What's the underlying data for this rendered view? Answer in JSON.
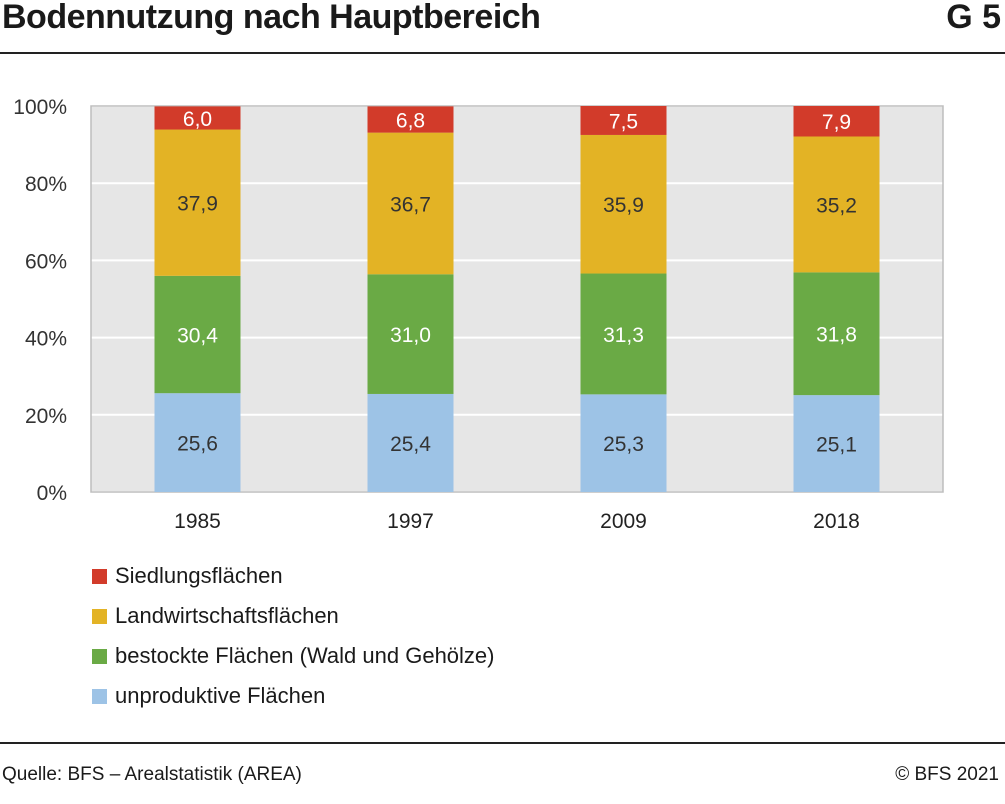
{
  "header": {
    "title": "Bodennutzung nach Hauptbereich",
    "figure_number": "G 5"
  },
  "footer": {
    "source": "Quelle: BFS – Arealstatistik (AREA)",
    "copyright": "© BFS 2021"
  },
  "chart_data": {
    "type": "bar",
    "stacked": true,
    "categories": [
      "1985",
      "1997",
      "2009",
      "2018"
    ],
    "series": [
      {
        "name": "unproduktive Flächen",
        "values": [
          25.6,
          25.4,
          25.3,
          25.1
        ],
        "labels": [
          "25,6",
          "25,4",
          "25,3",
          "25,1"
        ],
        "color": "#9dc3e6",
        "label_color": "#333333"
      },
      {
        "name": "bestockte Flächen (Wald und Gehölze)",
        "values": [
          30.4,
          31.0,
          31.3,
          31.8
        ],
        "labels": [
          "30,4",
          "31,0",
          "31,3",
          "31,8"
        ],
        "color": "#6aaa45",
        "label_color": "#ffffff"
      },
      {
        "name": "Landwirtschaftsflächen",
        "values": [
          37.9,
          36.7,
          35.9,
          35.2
        ],
        "labels": [
          "37,9",
          "36,7",
          "35,9",
          "35,2"
        ],
        "color": "#e3b325",
        "label_color": "#333333"
      },
      {
        "name": "Siedlungsflächen",
        "values": [
          6.0,
          6.8,
          7.5,
          7.9
        ],
        "labels": [
          "6,0",
          "6,8",
          "7,5",
          "7,9"
        ],
        "color": "#d23b2a",
        "label_color": "#ffffff"
      }
    ],
    "legend_order": [
      3,
      2,
      1,
      0
    ],
    "y_ticks": [
      "0%",
      "20%",
      "40%",
      "60%",
      "80%",
      "100%"
    ],
    "ylim": [
      0,
      100
    ],
    "grid": true,
    "plot_background": "#e6e6e6",
    "legend_position": "bottom-left"
  }
}
